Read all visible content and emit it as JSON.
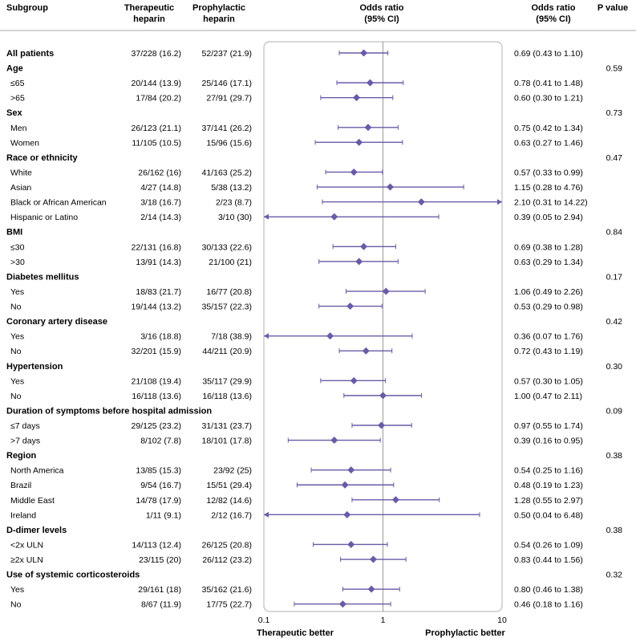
{
  "headers": {
    "subgroup": "Subgroup",
    "therapeutic": [
      "Therapeutic",
      "heparin"
    ],
    "prophylactic": [
      "Prophylactic",
      "heparin"
    ],
    "odds_ratio_plot": [
      "Odds ratio",
      "(95% CI)"
    ],
    "odds_ratio_text": [
      "Odds ratio",
      "(95% CI)"
    ],
    "p_value": "P value"
  },
  "footer": {
    "left_label": "Therapeutic better",
    "right_label": "Prophylactic better"
  },
  "colors": {
    "marker": "#6a5aa7",
    "frame": "#b0b0b0",
    "text": "#1a1a1a"
  },
  "chart_data": {
    "type": "forest",
    "xscale": "log",
    "xlim": [
      0.1,
      10
    ],
    "xticks": [
      "0.1",
      "1",
      "10"
    ],
    "reference_line": 1,
    "rows": [
      {
        "kind": "row",
        "bold": true,
        "label": "All patients",
        "ther": "37/228 (16.2)",
        "proph": "52/237 (21.9)",
        "or": 0.69,
        "lo": 0.43,
        "hi": 1.1,
        "ci_text": "0.69 (0.43 to 1.10)"
      },
      {
        "kind": "group",
        "label": "Age",
        "p": "0.59"
      },
      {
        "kind": "row",
        "label": "≤65",
        "ther": "20/144 (13.9)",
        "proph": "25/146 (17.1)",
        "or": 0.78,
        "lo": 0.41,
        "hi": 1.48,
        "ci_text": "0.78 (0.41 to 1.48)"
      },
      {
        "kind": "row",
        "label": ">65",
        "ther": "17/84 (20.2)",
        "proph": "27/91 (29.7)",
        "or": 0.6,
        "lo": 0.3,
        "hi": 1.21,
        "ci_text": "0.60 (0.30 to 1.21)"
      },
      {
        "kind": "group",
        "label": "Sex",
        "p": "0.73"
      },
      {
        "kind": "row",
        "label": "Men",
        "ther": "26/123 (21.1)",
        "proph": "37/141 (26.2)",
        "or": 0.75,
        "lo": 0.42,
        "hi": 1.34,
        "ci_text": "0.75 (0.42 to 1.34)"
      },
      {
        "kind": "row",
        "label": "Women",
        "ther": "11/105 (10.5)",
        "proph": "15/96 (15.6)",
        "or": 0.63,
        "lo": 0.27,
        "hi": 1.46,
        "ci_text": "0.63 (0.27 to 1.46)"
      },
      {
        "kind": "group",
        "label": "Race or ethnicity",
        "p": "0.47"
      },
      {
        "kind": "row",
        "label": "White",
        "ther": "26/162 (16)",
        "proph": "41/163 (25.2)",
        "or": 0.57,
        "lo": 0.33,
        "hi": 0.99,
        "ci_text": "0.57 (0.33 to 0.99)"
      },
      {
        "kind": "row",
        "label": "Asian",
        "ther": "4/27 (14.8)",
        "proph": "5/38 (13.2)",
        "or": 1.15,
        "lo": 0.28,
        "hi": 4.76,
        "ci_text": "1.15 (0.28 to 4.76)"
      },
      {
        "kind": "row",
        "label": "Black or African American",
        "ther": "3/18 (16.7)",
        "proph": "2/23 (8.7)",
        "or": 2.1,
        "lo": 0.31,
        "hi": 14.22,
        "ci_text": "2.10 (0.31 to 14.22)"
      },
      {
        "kind": "row",
        "label": "Hispanic or Latino",
        "ther": "2/14 (14.3)",
        "proph": "3/10 (30)",
        "or": 0.39,
        "lo": 0.05,
        "hi": 2.94,
        "ci_text": "0.39 (0.05 to 2.94)"
      },
      {
        "kind": "group",
        "label": "BMI",
        "p": "0.84"
      },
      {
        "kind": "row",
        "label": "≤30",
        "ther": "22/131 (16.8)",
        "proph": "30/133 (22.6)",
        "or": 0.69,
        "lo": 0.38,
        "hi": 1.28,
        "ci_text": "0.69 (0.38 to 1.28)"
      },
      {
        "kind": "row",
        "label": ">30",
        "ther": "13/91 (14.3)",
        "proph": "21/100 (21)",
        "or": 0.63,
        "lo": 0.29,
        "hi": 1.34,
        "ci_text": "0.63 (0.29 to 1.34)"
      },
      {
        "kind": "group",
        "label": "Diabetes mellitus",
        "p": "0.17"
      },
      {
        "kind": "row",
        "label": "Yes",
        "ther": "18/83 (21.7)",
        "proph": "16/77 (20.8)",
        "or": 1.06,
        "lo": 0.49,
        "hi": 2.26,
        "ci_text": "1.06 (0.49 to 2.26)"
      },
      {
        "kind": "row",
        "label": "No",
        "ther": "19/144 (13.2)",
        "proph": "35/157 (22.3)",
        "or": 0.53,
        "lo": 0.29,
        "hi": 0.98,
        "ci_text": "0.53 (0.29 to 0.98)"
      },
      {
        "kind": "group",
        "label": "Coronary artery disease",
        "p": "0.42"
      },
      {
        "kind": "row",
        "label": "Yes",
        "ther": "3/16 (18.8)",
        "proph": "7/18 (38.9)",
        "or": 0.36,
        "lo": 0.07,
        "hi": 1.76,
        "ci_text": "0.36 (0.07 to 1.76)"
      },
      {
        "kind": "row",
        "label": "No",
        "ther": "32/201 (15.9)",
        "proph": "44/211 (20.9)",
        "or": 0.72,
        "lo": 0.43,
        "hi": 1.19,
        "ci_text": "0.72 (0.43 to 1.19)"
      },
      {
        "kind": "group",
        "label": "Hypertension",
        "p": "0.30"
      },
      {
        "kind": "row",
        "label": "Yes",
        "ther": "21/108 (19.4)",
        "proph": "35/117 (29.9)",
        "or": 0.57,
        "lo": 0.3,
        "hi": 1.05,
        "ci_text": "0.57 (0.30 to 1.05)"
      },
      {
        "kind": "row",
        "label": "No",
        "ther": "16/118 (13.6)",
        "proph": "16/118 (13.6)",
        "or": 1.0,
        "lo": 0.47,
        "hi": 2.11,
        "ci_text": "1.00 (0.47 to 2.11)"
      },
      {
        "kind": "group",
        "label": "Duration of symptoms before hospital admission",
        "p": "0.09"
      },
      {
        "kind": "row",
        "label": "≤7 days",
        "ther": "29/125 (23.2)",
        "proph": "31/131 (23.7)",
        "or": 0.97,
        "lo": 0.55,
        "hi": 1.74,
        "ci_text": "0.97 (0.55 to 1.74)"
      },
      {
        "kind": "row",
        "label": ">7 days",
        "ther": "8/102 (7.8)",
        "proph": "18/101 (17.8)",
        "or": 0.39,
        "lo": 0.16,
        "hi": 0.95,
        "ci_text": "0.39 (0.16 to 0.95)"
      },
      {
        "kind": "group",
        "label": "Region",
        "p": "0.38"
      },
      {
        "kind": "row",
        "label": "North America",
        "ther": "13/85 (15.3)",
        "proph": "23/92 (25)",
        "or": 0.54,
        "lo": 0.25,
        "hi": 1.16,
        "ci_text": "0.54 (0.25 to 1.16)"
      },
      {
        "kind": "row",
        "label": "Brazil",
        "ther": "9/54 (16.7)",
        "proph": "15/51 (29.4)",
        "or": 0.48,
        "lo": 0.19,
        "hi": 1.23,
        "ci_text": "0.48 (0.19 to 1.23)"
      },
      {
        "kind": "row",
        "label": "Middle East",
        "ther": "14/78 (17.9)",
        "proph": "12/82 (14.6)",
        "or": 1.28,
        "lo": 0.55,
        "hi": 2.97,
        "ci_text": "1.28 (0.55 to 2.97)"
      },
      {
        "kind": "row",
        "label": "Ireland",
        "ther": "1/11 (9.1)",
        "proph": "2/12 (16.7)",
        "or": 0.5,
        "lo": 0.04,
        "hi": 6.48,
        "ci_text": "0.50 (0.04 to 6.48)"
      },
      {
        "kind": "group",
        "label": "D-dimer levels",
        "p": "0.38"
      },
      {
        "kind": "row",
        "label": "<2x ULN",
        "ther": "14/113 (12.4)",
        "proph": "26/125 (20.8)",
        "or": 0.54,
        "lo": 0.26,
        "hi": 1.09,
        "ci_text": "0.54 (0.26 to 1.09)"
      },
      {
        "kind": "row",
        "label": "≥2x ULN",
        "ther": "23/115 (20)",
        "proph": "26/112 (23.2)",
        "or": 0.83,
        "lo": 0.44,
        "hi": 1.56,
        "ci_text": "0.83 (0.44 to 1.56)"
      },
      {
        "kind": "group",
        "label": "Use of systemic corticosteroids",
        "p": "0.32"
      },
      {
        "kind": "row",
        "label": "Yes",
        "ther": "29/161 (18)",
        "proph": "35/162 (21.6)",
        "or": 0.8,
        "lo": 0.46,
        "hi": 1.38,
        "ci_text": "0.80 (0.46 to 1.38)"
      },
      {
        "kind": "row",
        "label": "No",
        "ther": "8/67 (11.9)",
        "proph": "17/75 (22.7)",
        "or": 0.46,
        "lo": 0.18,
        "hi": 1.16,
        "ci_text": "0.46 (0.18 to 1.16)"
      }
    ]
  }
}
